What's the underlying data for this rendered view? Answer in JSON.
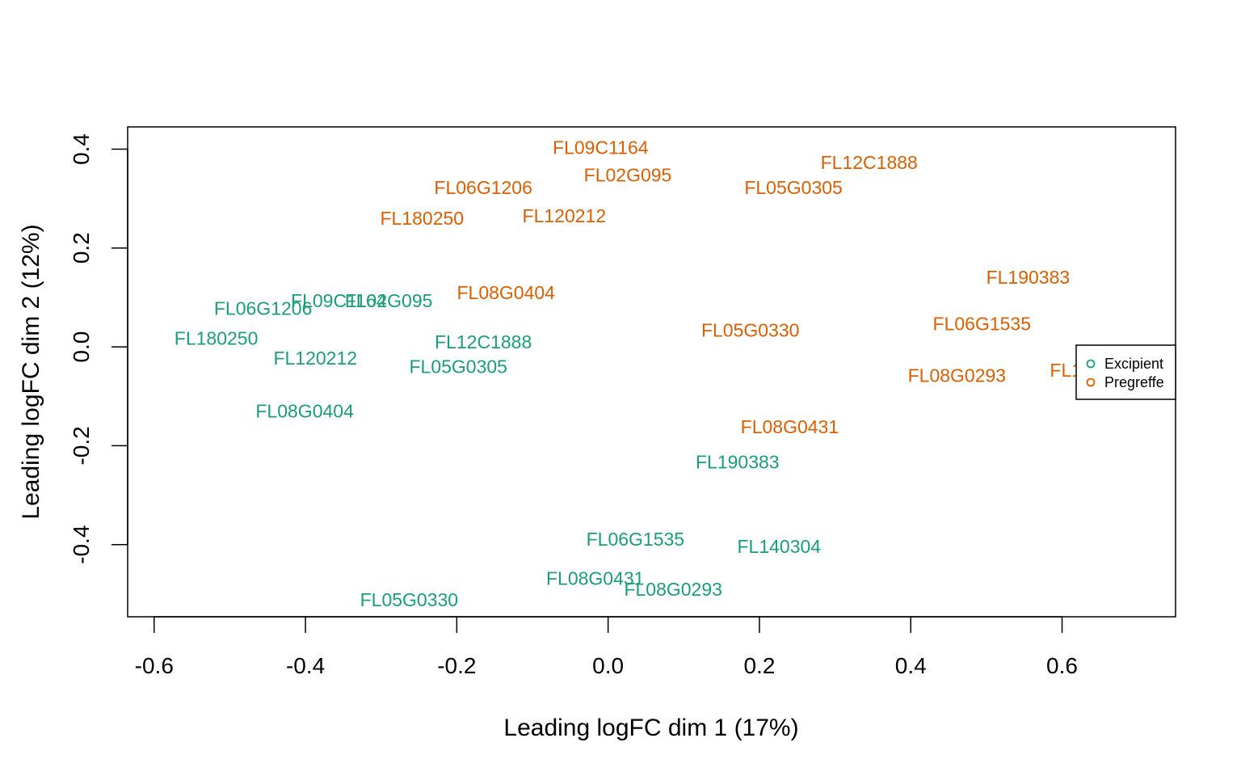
{
  "chart_data": {
    "type": "scatter",
    "title": "",
    "xlabel": "Leading logFC dim 1 (17%)",
    "ylabel": "Leading logFC dim 2 (12%)",
    "xlim": [
      -0.635,
      0.75
    ],
    "ylim": [
      -0.546,
      0.445
    ],
    "xticks": [
      -0.6,
      -0.4,
      -0.2,
      0.0,
      0.2,
      0.4,
      0.6
    ],
    "yticks": [
      -0.4,
      -0.2,
      0.0,
      0.2,
      0.4
    ],
    "xtick_labels": [
      "-0.6",
      "-0.4",
      "-0.2",
      "0.0",
      "0.2",
      "0.4",
      "0.6"
    ],
    "ytick_labels": [
      "-0.4",
      "-0.2",
      "0.0",
      "0.2",
      "0.4"
    ],
    "legend_position": "right",
    "series": [
      {
        "name": "Excipient",
        "color": "#1b9e77",
        "points": [
          {
            "label": "FL09C1164",
            "x": -0.356,
            "y": 0.093
          },
          {
            "label": "FL02G095",
            "x": -0.29,
            "y": 0.093
          },
          {
            "label": "FL06G1206",
            "x": -0.456,
            "y": 0.078
          },
          {
            "label": "FL180250",
            "x": -0.518,
            "y": 0.017
          },
          {
            "label": "FL120212",
            "x": -0.387,
            "y": -0.023
          },
          {
            "label": "FL05G0305",
            "x": -0.198,
            "y": -0.04
          },
          {
            "label": "FL12C1888",
            "x": -0.165,
            "y": 0.01
          },
          {
            "label": "FL08G0404",
            "x": -0.401,
            "y": -0.13
          },
          {
            "label": "FL190383",
            "x": 0.171,
            "y": -0.233
          },
          {
            "label": "FL06G1535",
            "x": 0.036,
            "y": -0.389
          },
          {
            "label": "FL140304",
            "x": 0.226,
            "y": -0.404
          },
          {
            "label": "FL08G0431",
            "x": -0.017,
            "y": -0.468
          },
          {
            "label": "FL08G0293",
            "x": 0.086,
            "y": -0.49
          },
          {
            "label": "FL05G0330",
            "x": -0.263,
            "y": -0.512
          }
        ]
      },
      {
        "name": "Pregreffe",
        "color": "#d95f02",
        "points": [
          {
            "label": "FL09C1164",
            "x": -0.01,
            "y": 0.403
          },
          {
            "label": "FL02G095",
            "x": 0.026,
            "y": 0.348
          },
          {
            "label": "FL06G1206",
            "x": -0.165,
            "y": 0.322
          },
          {
            "label": "FL180250",
            "x": -0.246,
            "y": 0.26
          },
          {
            "label": "FL120212",
            "x": -0.058,
            "y": 0.265
          },
          {
            "label": "FL12C1888",
            "x": 0.345,
            "y": 0.373
          },
          {
            "label": "FL05G0305",
            "x": 0.245,
            "y": 0.322
          },
          {
            "label": "FL08G0404",
            "x": -0.135,
            "y": 0.11
          },
          {
            "label": "FL190383",
            "x": 0.555,
            "y": 0.141
          },
          {
            "label": "FL05G0330",
            "x": 0.188,
            "y": 0.034
          },
          {
            "label": "FL06G1535",
            "x": 0.494,
            "y": 0.047
          },
          {
            "label": "FL08G0293",
            "x": 0.461,
            "y": -0.058
          },
          {
            "label": "FL08G0431",
            "x": 0.24,
            "y": -0.162
          },
          {
            "label": "FL1",
            "x": 0.605,
            "y": -0.047
          }
        ]
      }
    ]
  }
}
